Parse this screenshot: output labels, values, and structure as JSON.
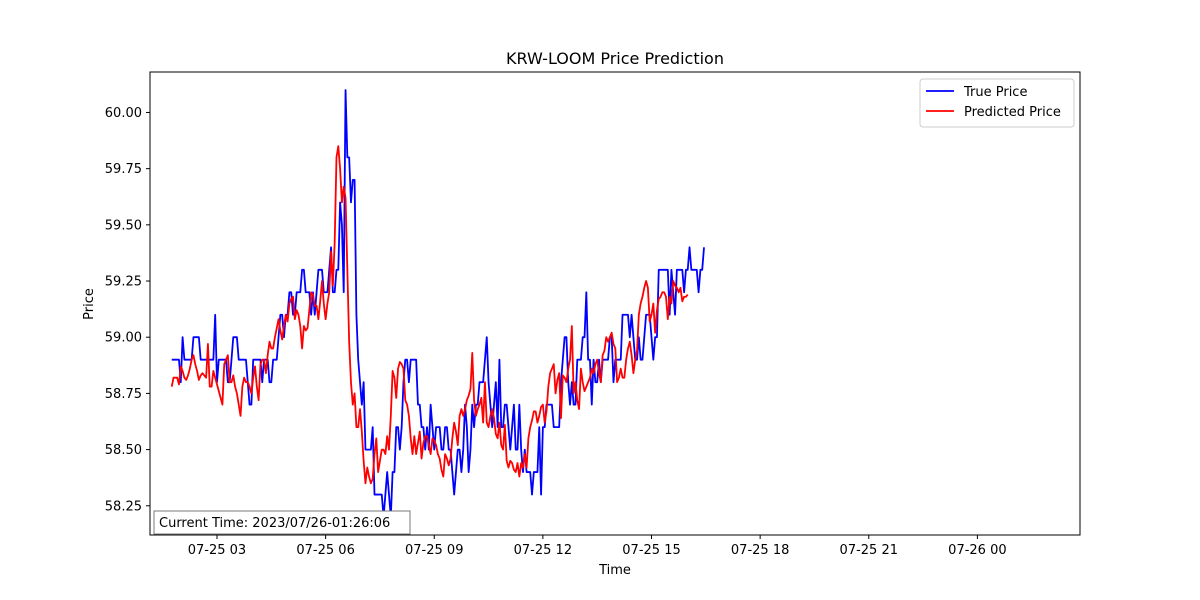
{
  "chart_data": {
    "type": "line",
    "title": "KRW-LOOM Price Prediction",
    "xlabel": "Time",
    "ylabel": "Price",
    "x_start": "2023-07-25 01:45",
    "x_step_minutes": 3,
    "xlim": [
      "2023-07-25 01:09",
      "2023-07-26 02:50"
    ],
    "ylim": [
      58.12,
      60.18
    ],
    "x_ticks": [
      "07-25 03",
      "07-25 06",
      "07-25 09",
      "07-25 12",
      "07-25 15",
      "07-25 18",
      "07-25 21",
      "07-26 00"
    ],
    "x_tick_times": [
      "2023-07-25 03:00",
      "2023-07-25 06:00",
      "2023-07-25 09:00",
      "2023-07-25 12:00",
      "2023-07-25 15:00",
      "2023-07-25 18:00",
      "2023-07-25 21:00",
      "2023-07-26 00:00"
    ],
    "y_ticks": [
      "58.25",
      "58.50",
      "58.75",
      "59.00",
      "59.25",
      "59.50",
      "59.75",
      "60.00"
    ],
    "y_tick_values": [
      58.25,
      58.5,
      58.75,
      59.0,
      59.25,
      59.5,
      59.75,
      60.0
    ],
    "grid": false,
    "legend_position": "top-right",
    "annotation": "Current Time: 2023/07/26-01:26:06",
    "series": [
      {
        "name": "True Price",
        "color": "#0000ff",
        "values": [
          58.9,
          58.9,
          58.9,
          58.9,
          58.9,
          58.8,
          59.0,
          58.9,
          58.9,
          58.9,
          58.9,
          58.9,
          59.0,
          59.0,
          59.0,
          59.0,
          58.9,
          58.9,
          58.9,
          58.9,
          58.9,
          58.9,
          58.9,
          58.9,
          59.1,
          58.8,
          58.9,
          58.9,
          58.9,
          58.9,
          58.9,
          58.8,
          58.8,
          58.9,
          59.0,
          59.0,
          59.0,
          58.9,
          58.9,
          58.9,
          58.9,
          58.9,
          58.8,
          58.7,
          58.7,
          58.9,
          58.9,
          58.9,
          58.9,
          58.9,
          58.8,
          58.9,
          58.9,
          58.9,
          58.8,
          58.8,
          58.9,
          58.9,
          58.9,
          59.0,
          59.1,
          59.1,
          59.0,
          59.1,
          59.1,
          59.2,
          59.2,
          59.1,
          59.1,
          59.2,
          59.2,
          59.2,
          59.3,
          59.3,
          59.2,
          59.2,
          59.2,
          59.1,
          59.2,
          59.1,
          59.2,
          59.3,
          59.3,
          59.3,
          59.2,
          59.2,
          59.2,
          59.3,
          59.4,
          59.2,
          59.2,
          59.3,
          59.3,
          59.6,
          59.5,
          59.2,
          60.1,
          59.8,
          59.8,
          59.6,
          59.7,
          59.7,
          59.1,
          58.9,
          58.8,
          58.7,
          58.8,
          58.5,
          58.5,
          58.5,
          58.5,
          58.6,
          58.3,
          58.3,
          58.3,
          58.3,
          58.3,
          58.2,
          58.3,
          58.4,
          58.3,
          58.2,
          58.4,
          58.4,
          58.6,
          58.6,
          58.5,
          58.6,
          58.8,
          58.9,
          58.9,
          58.8,
          58.9,
          58.9,
          58.9,
          58.9,
          58.7,
          58.7,
          58.6,
          58.6,
          58.5,
          58.6,
          58.5,
          58.7,
          58.6,
          58.5,
          58.6,
          58.6,
          58.6,
          58.5,
          58.5,
          58.6,
          58.6,
          58.5,
          58.5,
          58.4,
          58.3,
          58.4,
          58.5,
          58.5,
          58.4,
          58.5,
          58.7,
          58.6,
          58.4,
          58.5,
          58.7,
          58.6,
          58.7,
          58.7,
          58.8,
          58.8,
          58.8,
          58.9,
          59.0,
          58.8,
          58.7,
          58.6,
          58.7,
          58.8,
          58.6,
          58.9,
          58.6,
          58.6,
          58.7,
          58.7,
          58.6,
          58.5,
          58.6,
          58.7,
          58.5,
          58.5,
          58.7,
          58.5,
          58.4,
          58.5,
          58.4,
          58.4,
          58.4,
          58.3,
          58.4,
          58.4,
          58.4,
          58.6,
          58.3,
          58.6,
          58.6,
          58.7,
          58.7,
          58.7,
          58.7,
          58.6,
          58.6,
          58.6,
          58.6,
          58.8,
          58.9,
          59.0,
          59.0,
          58.8,
          58.7,
          58.8,
          58.7,
          58.7,
          58.9,
          58.9,
          58.9,
          59.0,
          59.0,
          59.2,
          58.9,
          58.9,
          58.7,
          58.9,
          58.8,
          58.8,
          58.9,
          58.8,
          58.9,
          58.9,
          58.9,
          58.9,
          59.0,
          59.0,
          58.8,
          58.9,
          58.9,
          58.9,
          58.9,
          59.1,
          59.1,
          59.1,
          59.1,
          59.0,
          59.1,
          59.0,
          58.9,
          58.9,
          59.0,
          58.9,
          58.9,
          59.0,
          59.1,
          59.1,
          59.1,
          59.0,
          58.9,
          59.0,
          59.0,
          59.3,
          59.3,
          59.3,
          59.3,
          59.3,
          59.3,
          59.1,
          59.3,
          59.2,
          59.1,
          59.3,
          59.3,
          59.3,
          59.3,
          59.2,
          59.3,
          59.3,
          59.4,
          59.3,
          59.3,
          59.3,
          59.3,
          59.2,
          59.3,
          59.3,
          59.4
        ]
      },
      {
        "name": "Predicted Price",
        "color": "#ff0000",
        "values": [
          58.78,
          58.82,
          58.82,
          58.82,
          58.79,
          58.87,
          58.85,
          58.82,
          58.81,
          58.83,
          58.86,
          58.9,
          58.92,
          58.88,
          58.85,
          58.81,
          58.83,
          58.84,
          58.83,
          58.82,
          58.97,
          58.78,
          58.78,
          58.85,
          58.82,
          58.79,
          58.76,
          58.73,
          58.7,
          58.88,
          58.9,
          58.92,
          58.8,
          58.8,
          58.83,
          58.78,
          58.75,
          58.7,
          58.65,
          58.78,
          58.82,
          58.8,
          58.8,
          58.78,
          58.75,
          58.82,
          58.87,
          58.78,
          58.72,
          58.88,
          58.9,
          58.9,
          58.84,
          58.92,
          58.98,
          58.95,
          58.95,
          59.0,
          59.04,
          59.08,
          59.03,
          58.99,
          59.05,
          59.1,
          59.07,
          59.15,
          59.17,
          59.18,
          59.08,
          59.12,
          59.1,
          59.05,
          58.95,
          59.05,
          59.03,
          59.04,
          59.12,
          59.2,
          59.19,
          59.14,
          59.14,
          59.08,
          59.16,
          59.25,
          59.15,
          59.08,
          59.15,
          59.2,
          59.38,
          59.23,
          59.42,
          59.8,
          59.85,
          59.75,
          59.6,
          59.67,
          59.62,
          59.3,
          58.98,
          58.8,
          58.7,
          58.75,
          58.6,
          58.6,
          58.68,
          58.58,
          58.45,
          58.35,
          58.42,
          58.38,
          58.35,
          58.37,
          58.48,
          58.55,
          58.4,
          58.45,
          58.5,
          58.5,
          58.48,
          58.56,
          58.5,
          58.65,
          58.85,
          58.82,
          58.73,
          58.86,
          58.89,
          58.88,
          58.86,
          58.72,
          58.7,
          58.65,
          58.55,
          58.48,
          58.56,
          58.48,
          58.53,
          58.58,
          58.46,
          58.53,
          58.56,
          58.56,
          58.52,
          58.48,
          58.55,
          58.54,
          58.52,
          58.48,
          58.46,
          58.41,
          58.38,
          58.48,
          58.46,
          58.43,
          58.46,
          58.55,
          58.62,
          58.58,
          58.52,
          58.65,
          58.68,
          58.65,
          58.68,
          58.72,
          58.74,
          58.77,
          58.93,
          58.72,
          58.65,
          58.68,
          58.7,
          58.73,
          58.62,
          58.8,
          58.62,
          58.6,
          58.65,
          58.68,
          58.64,
          58.57,
          58.55,
          58.62,
          58.52,
          58.5,
          58.61,
          58.45,
          58.42,
          58.45,
          58.44,
          58.41,
          58.4,
          58.44,
          58.38,
          58.44,
          58.42,
          58.48,
          58.42,
          58.55,
          58.6,
          58.63,
          58.67,
          58.67,
          58.62,
          58.65,
          58.69,
          58.7,
          58.62,
          58.67,
          58.78,
          58.84,
          58.86,
          58.88,
          58.75,
          58.81,
          58.84,
          58.64,
          58.83,
          58.82,
          58.8,
          58.86,
          58.9,
          59.05,
          58.75,
          58.8,
          58.72,
          58.68,
          58.86,
          58.8,
          58.76,
          58.78,
          58.8,
          58.82,
          58.86,
          58.84,
          58.88,
          58.9,
          58.84,
          58.8,
          58.92,
          58.94,
          59.0,
          58.98,
          59.0,
          59.02,
          58.97,
          58.95,
          58.8,
          58.82,
          58.86,
          58.82,
          58.82,
          58.9,
          58.95,
          58.98,
          58.92,
          58.84,
          58.9,
          58.94,
          59.1,
          59.15,
          59.18,
          59.22,
          59.25,
          59.22,
          59.07,
          59.1,
          59.15,
          59.02,
          59.12,
          59.17,
          59.18,
          59.2,
          59.2,
          59.18,
          59.08,
          59.18,
          59.15,
          59.25,
          59.23,
          59.22,
          59.2,
          59.22,
          59.16,
          59.18,
          59.18,
          59.19
        ]
      }
    ]
  }
}
